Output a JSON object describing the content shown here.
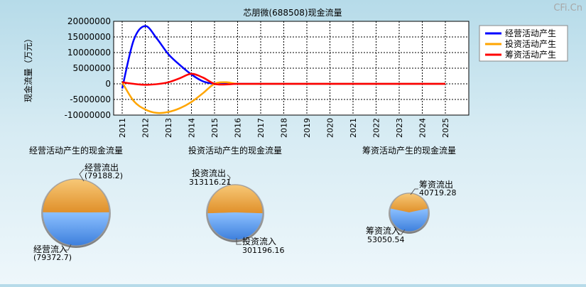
{
  "watermark": "CFi.Cn",
  "line_chart": {
    "title": "芯朋微(688508)现金流量",
    "ylabel": "现金流量（万元）",
    "legend": [
      {
        "name": "经营活动产生",
        "color": "#0000ff"
      },
      {
        "name": "投资活动产生",
        "color": "#ffa500"
      },
      {
        "name": "筹资活动产生",
        "color": "#ff0000"
      }
    ]
  },
  "pies": [
    {
      "title": "经营活动产生的现金流量",
      "out_label": "经营流出",
      "out_value": "(79188.2)",
      "in_label": "经营流入",
      "in_value": "(79372.7)"
    },
    {
      "title": "投资活动产生的现金流量",
      "out_label": "投资流出",
      "out_value": "313116.21",
      "in_label": "投资流入",
      "in_value": "301196.16"
    },
    {
      "title": "筹资活动产生的现金流量",
      "out_label": "筹资流出",
      "out_value": "40719.28",
      "in_label": "筹资流入",
      "in_value": "53050.54"
    }
  ],
  "chart_data": [
    {
      "type": "line",
      "title": "芯朋微(688508)现金流量",
      "ylabel": "现金流量（万元）",
      "x": [
        2011,
        2011.5,
        2012,
        2012.5,
        2013,
        2013.5,
        2014,
        2014.5,
        2015,
        2015.5,
        2016,
        2017,
        2018,
        2019,
        2020,
        2021,
        2022,
        2023,
        2024,
        2025
      ],
      "xlim": [
        2011,
        2025
      ],
      "ylim": [
        -10000000,
        20000000
      ],
      "yticks": [
        20000000,
        15000000,
        10000000,
        5000000,
        0,
        -5000000,
        -10000000
      ],
      "xticks": [
        "2011",
        "2012",
        "2013",
        "2014",
        "2015",
        "2016",
        "2017",
        "2018",
        "2019",
        "2020",
        "2021",
        "2022",
        "2023",
        "2024",
        "2025"
      ],
      "grid": true,
      "legend_position": "top-right",
      "series": [
        {
          "name": "经营活动产生",
          "color": "#0000ff",
          "values": [
            -1500000,
            14000000,
            18500000,
            14500000,
            9500000,
            6000000,
            3000000,
            800000,
            0,
            0,
            0,
            0,
            0,
            0,
            0,
            0,
            0,
            0,
            0,
            0
          ]
        },
        {
          "name": "投资活动产生",
          "color": "#ffa500",
          "values": [
            500000,
            -5500000,
            -8200000,
            -9300000,
            -9000000,
            -7800000,
            -5800000,
            -3000000,
            0,
            500000,
            0,
            0,
            0,
            0,
            0,
            0,
            0,
            0,
            0,
            0
          ]
        },
        {
          "name": "筹资活动产生",
          "color": "#ff0000",
          "values": [
            500000,
            0,
            -300000,
            -100000,
            500000,
            1800000,
            3200000,
            2000000,
            0,
            -200000,
            0,
            0,
            0,
            0,
            0,
            0,
            0,
            0,
            0,
            0
          ]
        }
      ]
    },
    {
      "type": "pie",
      "title": "经营活动产生的现金流量",
      "labels": [
        "经营流出",
        "经营流入"
      ],
      "values": [
        79188.2,
        79372.7
      ],
      "colors": [
        "#f2a73a",
        "#4f8fe6"
      ]
    },
    {
      "type": "pie",
      "title": "投资活动产生的现金流量",
      "labels": [
        "投资流出",
        "投资流入"
      ],
      "values": [
        313116.21,
        301196.16
      ],
      "colors": [
        "#f2a73a",
        "#4f8fe6"
      ]
    },
    {
      "type": "pie",
      "title": "筹资活动产生的现金流量",
      "labels": [
        "筹资流出",
        "筹资流入"
      ],
      "values": [
        40719.28,
        53050.54
      ],
      "colors": [
        "#f2a73a",
        "#4f8fe6"
      ]
    }
  ]
}
